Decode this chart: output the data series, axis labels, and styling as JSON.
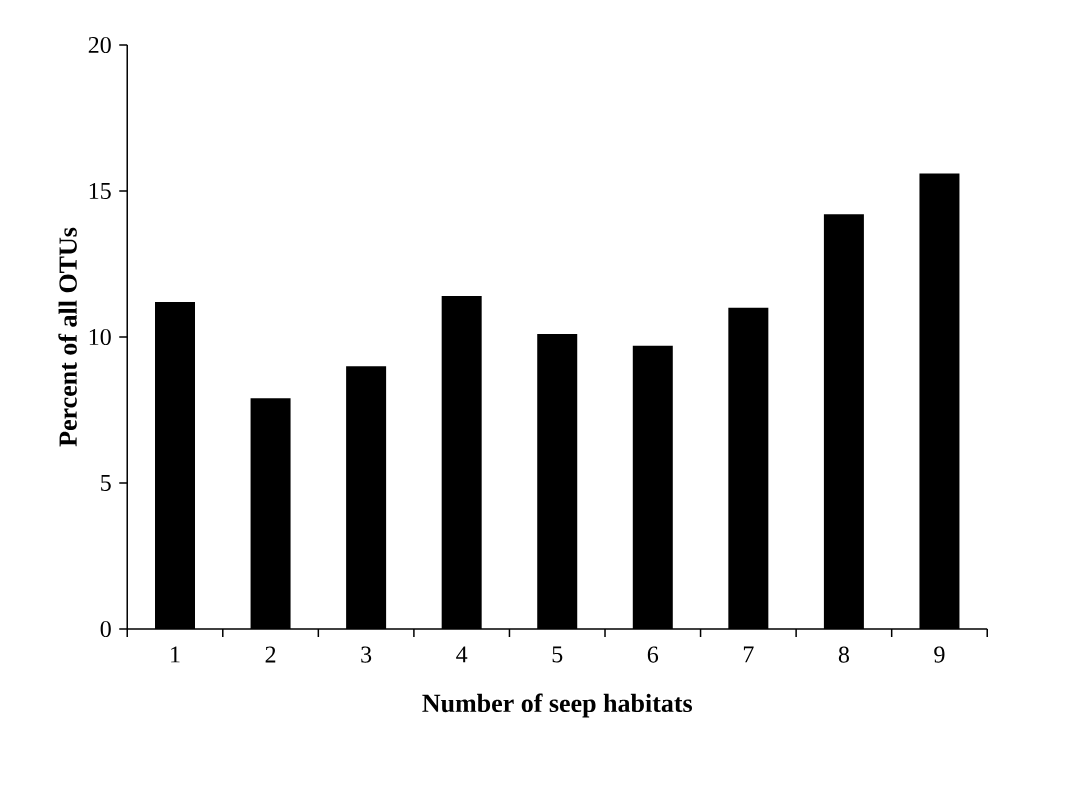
{
  "chart_data": {
    "type": "bar",
    "xlabel": "Number of seep habitats",
    "ylabel": "Percent of all OTUs",
    "categories": [
      "1",
      "2",
      "3",
      "4",
      "5",
      "6",
      "7",
      "8",
      "9"
    ],
    "values": [
      11.2,
      7.9,
      9.0,
      11.4,
      10.1,
      9.7,
      11.0,
      14.2,
      15.6
    ],
    "color": "#000000",
    "ylim": [
      0,
      20
    ],
    "yticks": [
      0,
      5,
      10,
      15,
      20
    ]
  }
}
